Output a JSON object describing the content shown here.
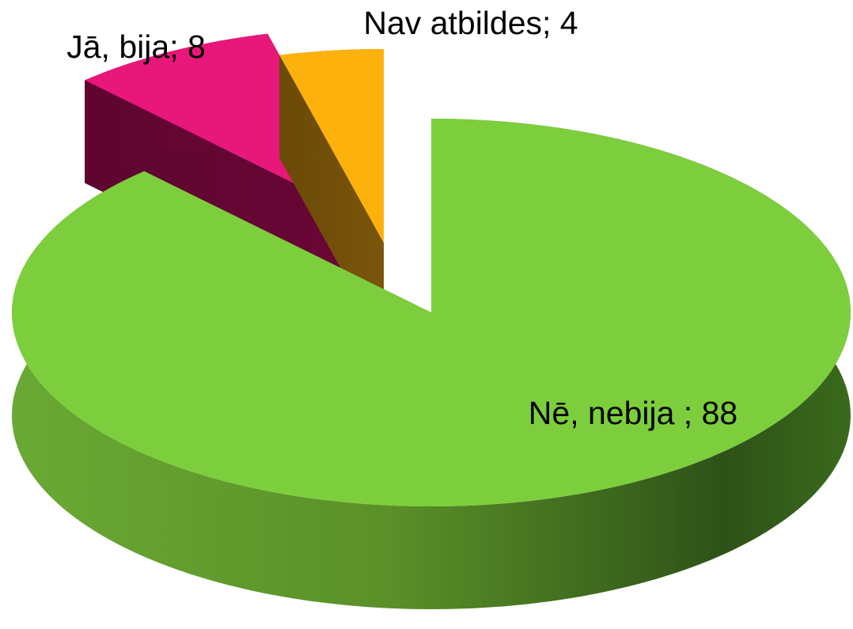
{
  "chart_data": {
    "type": "pie3d",
    "values": [
      88,
      8,
      4
    ],
    "value_labels": [
      "Nē, nebija ; 88",
      "Jā, bija; 8",
      "Nav atbildes; 4"
    ],
    "colors": [
      "#7dce3c",
      "#e8177a",
      "#fdb10d"
    ]
  }
}
